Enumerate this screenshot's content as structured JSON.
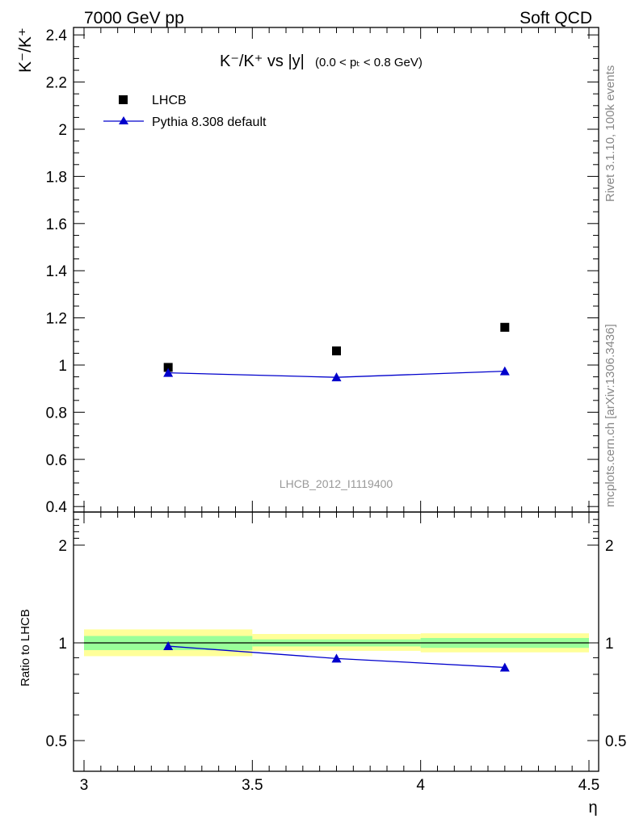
{
  "header": {
    "left": "7000 GeV pp",
    "right": "Soft QCD"
  },
  "side_labels": {
    "rivet": "Rivet 3.1.10,  100k events",
    "mcplots": "mcplots.cern.ch [arXiv:1306.3436]"
  },
  "chart_data": [
    {
      "type": "scatter",
      "title_main": "K⁻/K⁺ vs |y|",
      "title_cut": "(0.0 < pₜ < 0.8 GeV)",
      "ylabel": "K⁻/K⁺",
      "analysis_label": "LHCB_2012_I1119400",
      "xlim": [
        3,
        4.5
      ],
      "ylim": [
        0.4,
        2.45
      ],
      "y_ticks": [
        0.4,
        0.6,
        0.8,
        1,
        1.2,
        1.4,
        1.6,
        1.8,
        2,
        2.2,
        2.4
      ],
      "y_tick_labels": [
        "0.4",
        "0.6",
        "0.8",
        "1",
        "1.2",
        "1.4",
        "1.6",
        "1.8",
        "2",
        "2.2",
        "2.4"
      ],
      "legend": [
        {
          "label": "LHCB",
          "marker": "square",
          "color": "#000000"
        },
        {
          "label": "Pythia 8.308 default",
          "marker": "triangle",
          "color": "#0000cc"
        }
      ],
      "series": [
        {
          "name": "LHCB",
          "x": [
            3.25,
            3.75,
            4.25
          ],
          "y": [
            0.99,
            1.06,
            1.16
          ],
          "color": "#000000"
        },
        {
          "name": "Pythia 8.308 default",
          "x": [
            3.25,
            3.75,
            4.25
          ],
          "y": [
            0.967,
            0.948,
            0.974
          ],
          "yerr": [
            0.012,
            0.015,
            0.015
          ],
          "color": "#0000cc"
        }
      ]
    },
    {
      "type": "line",
      "ylabel": "Ratio to LHCB",
      "xlabel": "η",
      "xlim": [
        3,
        4.5
      ],
      "x_ticks": [
        3,
        3.5,
        4,
        4.5
      ],
      "x_tick_labels": [
        "3",
        "3.5",
        "4",
        "4.5"
      ],
      "y_log": true,
      "ylim": [
        0.4,
        2.45
      ],
      "y_ticks": [
        0.5,
        1,
        2
      ],
      "y_tick_labels": [
        "0.5",
        "1",
        "2"
      ],
      "bands": [
        {
          "x0": 3.0,
          "x1": 3.5,
          "yellow": [
            0.91,
            1.1
          ],
          "green": [
            0.95,
            1.05
          ]
        },
        {
          "x0": 3.5,
          "x1": 4.0,
          "yellow": [
            0.945,
            1.065
          ],
          "green": [
            0.975,
            1.025
          ]
        },
        {
          "x0": 4.0,
          "x1": 4.5,
          "yellow": [
            0.935,
            1.07
          ],
          "green": [
            0.965,
            1.035
          ]
        }
      ],
      "colors": {
        "yellow": "#ffff99",
        "green": "#99ff99"
      },
      "series": [
        {
          "name": "Pythia 8.308 default",
          "x": [
            3.25,
            3.75,
            4.25
          ],
          "y": [
            0.977,
            0.895,
            0.84
          ],
          "color": "#0000cc"
        }
      ]
    }
  ]
}
